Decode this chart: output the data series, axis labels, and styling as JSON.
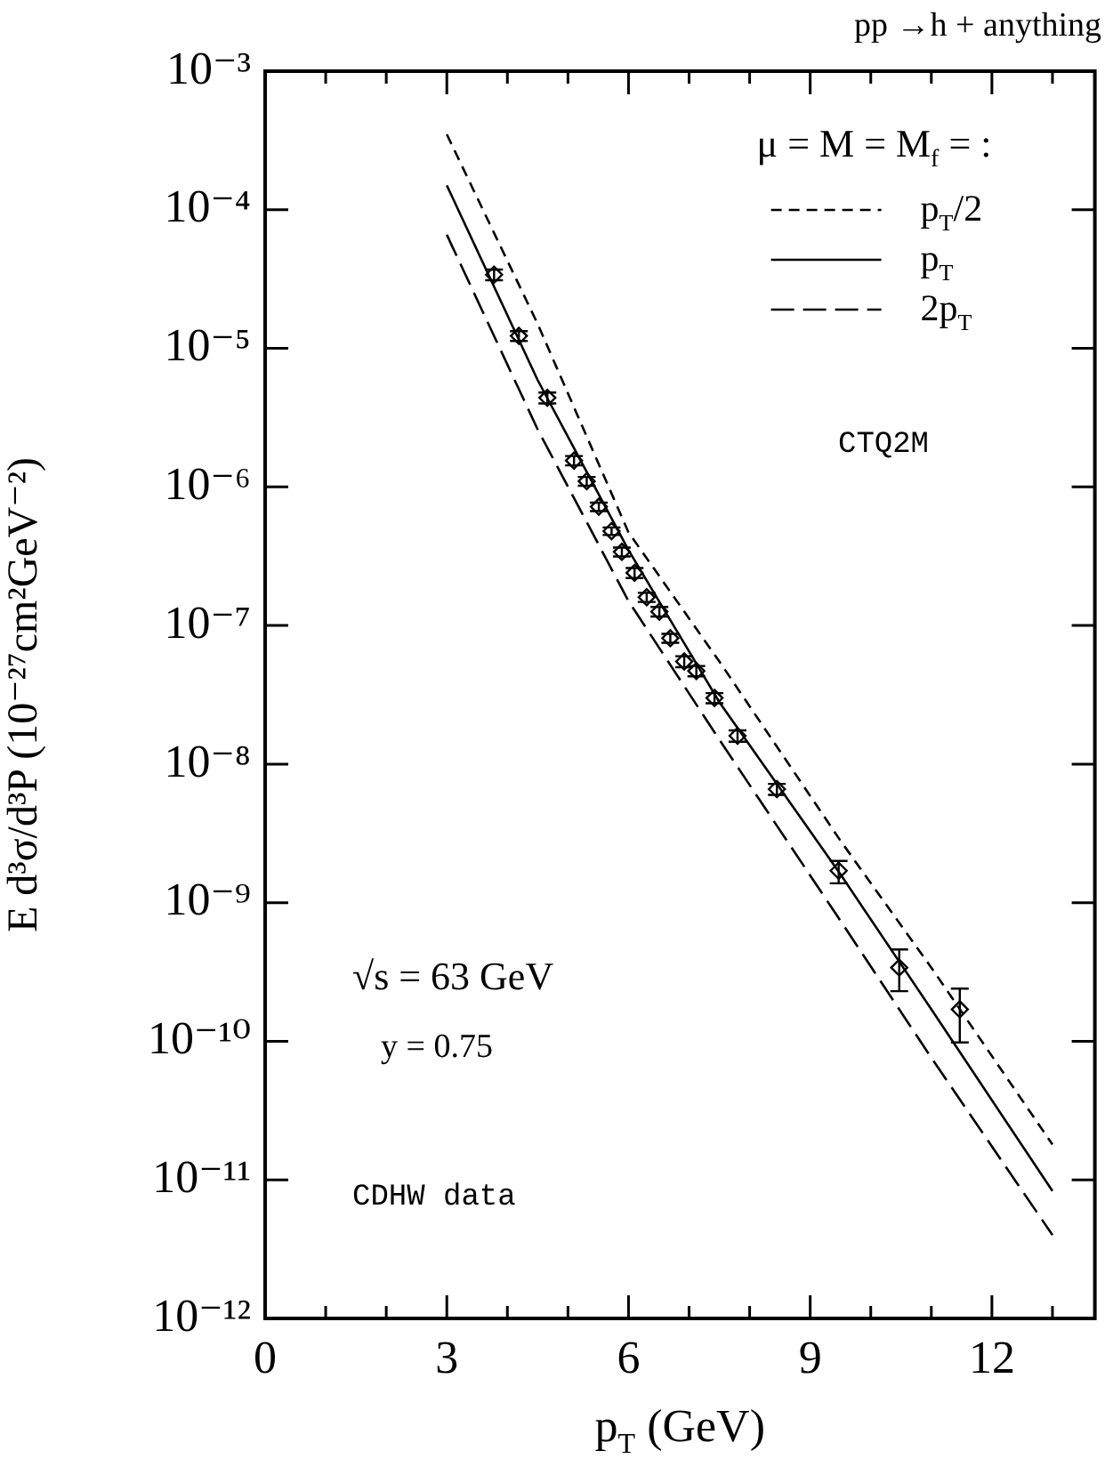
{
  "chart_data": {
    "type": "line",
    "title": "pp →h + anything",
    "xlabel": "p$_{T}$ (GeV)",
    "ylabel": "E d³σ/d³P (10⁻²⁷cm²GeV⁻²)",
    "legend_title": "μ = M = M$_{f}$ = :",
    "legend": "top right",
    "log": "y",
    "grid": false,
    "xlim": [
      0,
      13.7
    ],
    "xticks": [
      0,
      {
        "value": 1,
        "label": null
      },
      {
        "value": 2,
        "label": null
      },
      3,
      {
        "value": 4,
        "label": null
      },
      {
        "value": 5,
        "label": null
      },
      6,
      {
        "value": 7,
        "label": null
      },
      {
        "value": 8,
        "label": null
      },
      9,
      {
        "value": 10,
        "label": null
      },
      {
        "value": 11,
        "label": null
      },
      12,
      {
        "value": 13,
        "label": null
      }
    ],
    "ylim": [
      1e-12,
      0.001
    ],
    "yticks": [
      {
        "value": 1e-12,
        "label": "10⁻¹²"
      },
      {
        "value": 1e-11,
        "label": "10⁻¹¹"
      },
      {
        "value": 1e-10,
        "label": "10⁻¹⁰"
      },
      {
        "value": 1e-09,
        "label": "10⁻⁹"
      },
      {
        "value": 1e-08,
        "label": "10⁻⁸"
      },
      {
        "value": 1e-07,
        "label": "10⁻⁷"
      },
      {
        "value": 1e-06,
        "label": "10⁻⁶"
      },
      {
        "value": 1e-05,
        "label": "10⁻⁵"
      },
      {
        "value": 0.0001,
        "label": "10⁻⁴"
      },
      {
        "value": 0.001,
        "label": "10⁻³"
      }
    ],
    "annotations": [
      "CTQ2M",
      "√s = 63 GeV",
      "y = 0.75",
      "CDHW data"
    ],
    "series": [
      {
        "name": "p$_{T}$/2",
        "color": "#000000",
        "line_style": "dashed",
        "marker": "none",
        "x": [
          3,
          4.5,
          6,
          7.5,
          9.5,
          11,
          13
        ],
        "values": [
          0.00035,
          1.5e-05,
          4.7e-07,
          5.5e-08,
          2.8e-09,
          3.4e-10,
          1.8e-11
        ]
      },
      {
        "name": "p$_{T}$",
        "color": "#000000",
        "line_style": "solid",
        "marker": "none",
        "x": [
          3,
          4.5,
          6,
          7.5,
          9.5,
          11,
          13
        ],
        "values": [
          0.00015,
          5.9e-06,
          3.5e-07,
          2.8e-08,
          1.6e-09,
          1.7e-10,
          8.3e-12
        ]
      },
      {
        "name": "2p$_{T}$",
        "color": "#000000",
        "line_style": "dashed",
        "marker": "none",
        "x": [
          3,
          4.5,
          6,
          7.5,
          9.5,
          11,
          13
        ],
        "values": [
          6.6e-05,
          2.6e-06,
          1.5e-07,
          1.5e-08,
          7.4e-10,
          7.6e-11,
          4e-12
        ]
      },
      {
        "type": "scatter",
        "color": "#000000",
        "marker": "diamond",
        "x": [
          3.78,
          4.19,
          4.66,
          5.1,
          5.31,
          5.51,
          5.72,
          5.89,
          6.1,
          6.3,
          6.51,
          6.69,
          6.92,
          7.12,
          7.42,
          7.8,
          8.45,
          9.47,
          10.47,
          11.47
        ],
        "values": [
          3.4e-05,
          1.23e-05,
          4.4e-06,
          1.55e-06,
          1.1e-06,
          7.2e-07,
          4.8e-07,
          3.4e-07,
          2.4e-07,
          1.6e-07,
          1.26e-07,
          8.1e-08,
          5.5e-08,
          4.7e-08,
          3e-08,
          1.6e-08,
          6.6e-09,
          1.7e-09,
          3.4e-10,
          1.7e-10
        ],
        "errors": [
          3e-06,
          1e-06,
          4e-07,
          1.2e-07,
          8e-08,
          5e-08,
          3e-08,
          2.5e-08,
          2e-08,
          1.2e-08,
          1e-08,
          6e-09,
          5e-09,
          4e-09,
          2.5e-09,
          1.5e-09,
          6e-10,
          [
            1.38e-09,
            2e-09
          ],
          [
            2.3e-10,
            4.6e-10
          ],
          [
            9.8e-11,
            2.4e-10
          ]
        ]
      }
    ]
  }
}
